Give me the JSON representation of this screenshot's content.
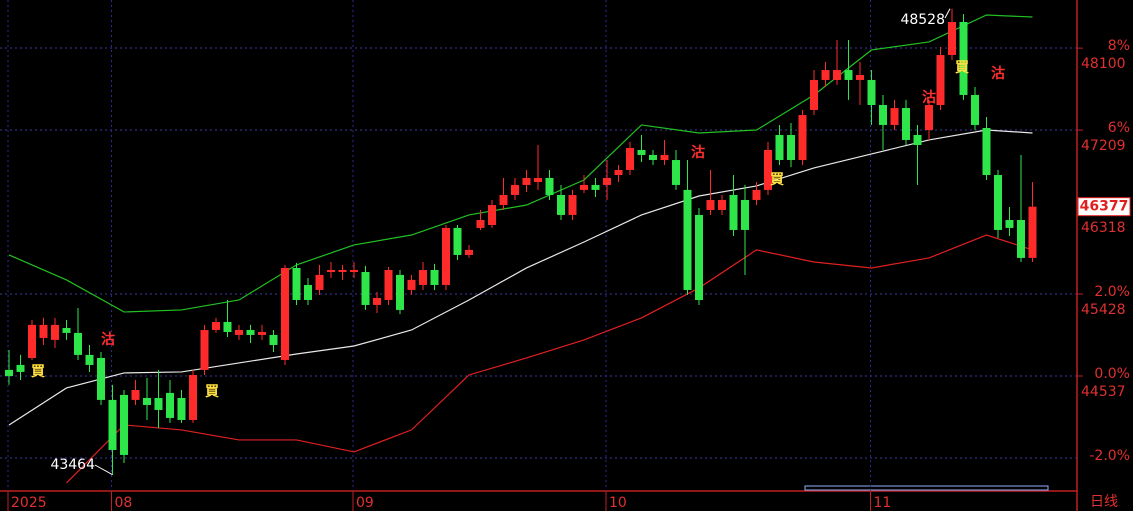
{
  "chart_data": {
    "type": "candlestick",
    "candles": {
      "open": [
        44603,
        44657,
        44733,
        44950,
        44929,
        45059,
        45005,
        44766,
        44733,
        44277,
        44331,
        44277,
        44298,
        44298,
        44353,
        44298,
        44059,
        44603,
        45037,
        45124,
        44983,
        45037,
        44983,
        44983,
        44711,
        45711,
        45526,
        45472,
        45667,
        45667,
        45667,
        45667,
        45309,
        45363,
        45635,
        45472,
        45526,
        45689,
        45526,
        46146,
        45852,
        46146,
        46178,
        46395,
        46504,
        46613,
        46645,
        46689,
        46504,
        46287,
        46559,
        46613,
        46613,
        46721,
        46776,
        46993,
        46939,
        46884,
        46884,
        46559,
        46287,
        46341,
        46341,
        46504,
        46450,
        46450,
        46559,
        47156,
        47156,
        46884,
        47428,
        47754,
        47754,
        47862,
        47754,
        47754,
        47482,
        47265,
        47449,
        47156,
        47210,
        47482,
        48025,
        48384,
        47591,
        47232,
        46721,
        46232,
        46232,
        45820
      ],
      "high": [
        44820,
        44766,
        45146,
        45168,
        45168,
        45146,
        45276,
        44874,
        44798,
        44440,
        44385,
        44494,
        44516,
        44603,
        44494,
        44385,
        44603,
        45092,
        45168,
        45363,
        45092,
        45092,
        45092,
        45037,
        45744,
        45766,
        45602,
        45744,
        45776,
        45744,
        45776,
        45733,
        45450,
        45722,
        45689,
        45635,
        45776,
        45755,
        46178,
        46178,
        45961,
        46341,
        46450,
        46689,
        46689,
        46776,
        47047,
        46776,
        46613,
        46559,
        46721,
        46689,
        46884,
        46830,
        47080,
        47156,
        46993,
        47102,
        46993,
        46884,
        46363,
        46776,
        46504,
        46721,
        46613,
        46645,
        47080,
        47265,
        47286,
        47428,
        47862,
        47949,
        48188,
        48188,
        47949,
        47862,
        47591,
        47537,
        47537,
        47265,
        47537,
        48112,
        48528,
        48471,
        47678,
        47352,
        46776,
        46374,
        46939,
        46645
      ],
      "low": [
        44440,
        44494,
        44711,
        44874,
        44841,
        44929,
        44711,
        44581,
        44222,
        43464,
        43592,
        44222,
        44059,
        43972,
        44027,
        44027,
        44027,
        44548,
        45005,
        44961,
        44929,
        44896,
        44929,
        44798,
        44657,
        45309,
        45309,
        45418,
        45602,
        45581,
        45602,
        45255,
        45222,
        45309,
        45211,
        45418,
        45472,
        45472,
        45472,
        45798,
        45820,
        46124,
        46146,
        46341,
        46450,
        46537,
        46559,
        46450,
        46232,
        46232,
        46526,
        46482,
        46450,
        46645,
        46721,
        46863,
        46830,
        46830,
        46559,
        45418,
        45309,
        46287,
        46287,
        46058,
        45635,
        46395,
        46504,
        46830,
        46808,
        46830,
        47373,
        47678,
        47700,
        47537,
        47482,
        47265,
        46993,
        47210,
        47047,
        46613,
        47102,
        47428,
        47971,
        47537,
        47210,
        46667,
        46037,
        46058,
        45776,
        45776
      ],
      "close": [
        44537,
        44581,
        45092,
        45092,
        45092,
        45005,
        44766,
        44657,
        44277,
        43733,
        43679,
        44385,
        44222,
        44168,
        44081,
        44059,
        44548,
        45037,
        45124,
        45015,
        45037,
        44983,
        45015,
        44874,
        45711,
        45363,
        45363,
        45635,
        45689,
        45689,
        45689,
        45309,
        45385,
        45689,
        45255,
        45581,
        45689,
        45526,
        46146,
        45852,
        45907,
        46232,
        46395,
        46504,
        46613,
        46689,
        46689,
        46504,
        46287,
        46504,
        46613,
        46559,
        46689,
        46776,
        47015,
        46939,
        46884,
        46939,
        46613,
        45472,
        45363,
        46450,
        46450,
        46124,
        46124,
        46559,
        46993,
        46884,
        46884,
        47373,
        47754,
        47862,
        47862,
        47754,
        47808,
        47482,
        47265,
        47449,
        47102,
        47047,
        47482,
        48025,
        48384,
        47591,
        47265,
        46721,
        46124,
        46146,
        45820,
        46377
      ]
    },
    "up_color": "#ff2a2a",
    "down_color": "#2ee64a",
    "bands": [
      {
        "color": "#e8e8e8",
        "x": [
          0,
          5,
          10,
          15,
          20,
          25,
          30,
          35,
          40,
          45,
          50,
          55,
          60,
          65,
          70,
          75,
          80,
          85,
          89
        ],
        "values": [
          44005,
          44407,
          44570,
          44581,
          44679,
          44776,
          44863,
          45037,
          45363,
          45711,
          45993,
          46287,
          46493,
          46602,
          46798,
          46950,
          47102,
          47210,
          47178
        ]
      },
      {
        "color": "#22c022",
        "x": [
          0,
          5,
          10,
          15,
          20,
          25,
          30,
          35,
          40,
          45,
          50,
          55,
          60,
          65,
          70,
          75,
          80,
          85,
          89
        ],
        "values": [
          45852,
          45581,
          45233,
          45255,
          45363,
          45744,
          45961,
          46069,
          46287,
          46395,
          46667,
          47265,
          47178,
          47210,
          47591,
          48080,
          48167,
          48460,
          48438
        ]
      },
      {
        "color": "#e02020",
        "x": [
          5,
          10,
          15,
          20,
          25,
          30,
          35,
          40,
          45,
          50,
          55,
          60,
          65,
          70,
          75,
          80,
          85,
          89
        ],
        "values": [
          43375,
          44005,
          43951,
          43842,
          43842,
          43712,
          43951,
          44548,
          44733,
          44929,
          45168,
          45494,
          45907,
          45776,
          45711,
          45820,
          46069,
          45907
        ]
      }
    ],
    "ylim": [
      43298,
      48623
    ],
    "yticks": [
      44537,
      45428,
      46318,
      47209,
      48100
    ],
    "y2lim": [
      -2.78,
      9.17
    ],
    "y2ticks": [
      {
        "value": -2,
        "label": "-2.0%"
      },
      {
        "value": 0,
        "label": "0.0%"
      },
      {
        "value": 2,
        "label": "2.0%"
      },
      {
        "value": 6,
        "label": "6%"
      },
      {
        "value": 8,
        "label": "8%"
      }
    ],
    "xticks": [
      {
        "value": 0,
        "label": "2025"
      },
      {
        "value": 9,
        "label": "08"
      },
      {
        "value": 30,
        "label": "09"
      },
      {
        "value": 52,
        "label": "10"
      },
      {
        "value": 75,
        "label": "11"
      }
    ],
    "last_price": 46377,
    "high_label": 48528,
    "low_label": 43464,
    "signals": [
      "買",
      "買",
      "買",
      "買",
      "沽",
      "沽",
      "沽",
      "沽"
    ],
    "period_label": "日线"
  }
}
